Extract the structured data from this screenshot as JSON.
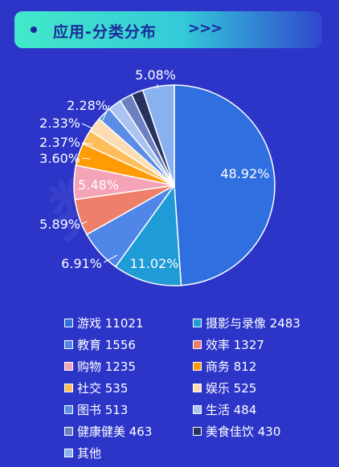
{
  "header": {
    "title": "应用-分类分布",
    "arrows": ">>>"
  },
  "watermark": "数据",
  "chart_data": {
    "type": "pie",
    "title": "应用-分类分布",
    "slices": [
      {
        "name": "游戏",
        "value": 11021,
        "pct_label": "48.92%",
        "color": "#2f6fe0"
      },
      {
        "name": "摄影与录像",
        "value": 2483,
        "pct_label": "11.02%",
        "color": "#1f9bd6"
      },
      {
        "name": "教育",
        "value": 1556,
        "pct_label": "6.91%",
        "color": "#4f86e8"
      },
      {
        "name": "效率",
        "value": 1327,
        "pct_label": "5.89%",
        "color": "#ee7f6a"
      },
      {
        "name": "购物",
        "value": 1235,
        "pct_label": "5.48%",
        "color": "#f5a3b7"
      },
      {
        "name": "商务",
        "value": 812,
        "pct_label": "3.60%",
        "color": "#ff9b05"
      },
      {
        "name": "社交",
        "value": 535,
        "pct_label": "2.37%",
        "color": "#ffbc5a"
      },
      {
        "name": "娱乐",
        "value": 525,
        "pct_label": "2.33%",
        "color": "#fcdcb0"
      },
      {
        "name": "图书",
        "value": 513,
        "pct_label": "2.28%",
        "color": "#5b8de6"
      },
      {
        "name": "生活",
        "value": 484,
        "pct_label": "",
        "color": "#a9c4f0"
      },
      {
        "name": "健康健美",
        "value": 463,
        "pct_label": "",
        "color": "#6b80c0"
      },
      {
        "name": "美食佳饮",
        "value": 430,
        "pct_label": "",
        "color": "#27335e"
      },
      {
        "name": "其他",
        "value": 1145,
        "pct_label": "5.08%",
        "color": "#8ab1ef"
      }
    ],
    "legend": [
      {
        "label": "游戏 11021",
        "color": "#2f6fe0"
      },
      {
        "label": "摄影与录像 2483",
        "color": "#1f9bd6"
      },
      {
        "label": "教育 1556",
        "color": "#4f86e8"
      },
      {
        "label": "效率 1327",
        "color": "#ee7f6a"
      },
      {
        "label": "购物 1235",
        "color": "#f5a3b7"
      },
      {
        "label": "商务 812",
        "color": "#ff9b05"
      },
      {
        "label": "社交 535",
        "color": "#ffbc5a"
      },
      {
        "label": "娱乐 525",
        "color": "#fcdcb0"
      },
      {
        "label": "图书 513",
        "color": "#5b8de6"
      },
      {
        "label": "生活 484",
        "color": "#a9c4f0"
      },
      {
        "label": "健康健美 463",
        "color": "#6b80c0"
      },
      {
        "label": "美食佳饮 430",
        "color": "#27335e"
      },
      {
        "label": "其他",
        "color": "#8ab1ef"
      }
    ],
    "legend_placement": "bottom"
  }
}
